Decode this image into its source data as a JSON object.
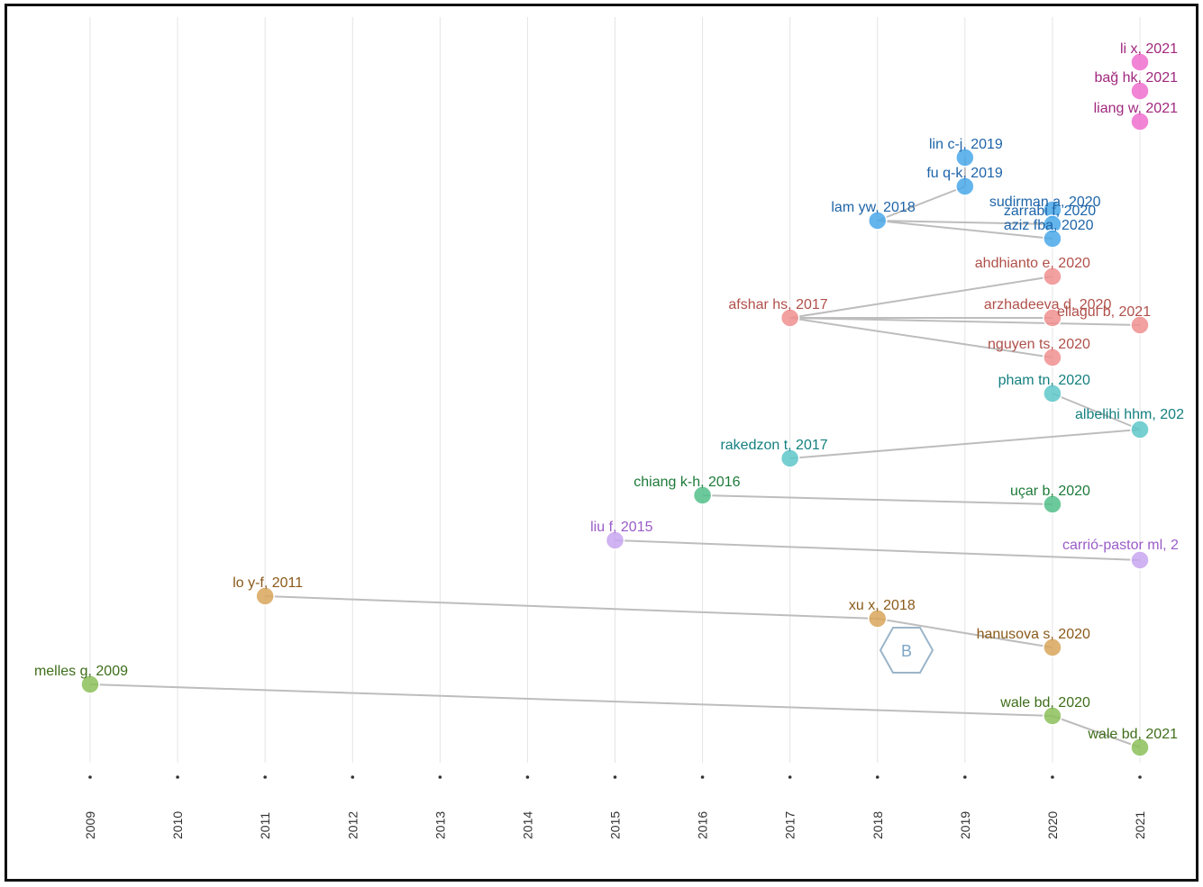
{
  "chart_data": {
    "type": "scatter",
    "title": "",
    "xlabel": "",
    "ylabel": "",
    "x_axis": {
      "ticks": [
        "2009",
        "2010",
        "2011",
        "2012",
        "2013",
        "2014",
        "2015",
        "2016",
        "2017",
        "2018",
        "2019",
        "2020",
        "2021"
      ],
      "range": [
        2009,
        2021
      ],
      "grid": true
    },
    "clusters": [
      {
        "color": "#f06fcf",
        "label_color": "#a0287e",
        "nodes": [
          {
            "id": "li-2021",
            "label": "li x, 2021",
            "year": 2021
          },
          {
            "id": "bag-2021",
            "label": "bağ hk, 2021",
            "year": 2021
          },
          {
            "id": "liang-2021",
            "label": "liang w, 2021",
            "year": 2021
          }
        ]
      },
      {
        "color": "#4aa8ea",
        "label_color": "#1e64a8",
        "nodes": [
          {
            "id": "lin-2019",
            "label": "lin c-j, 2019",
            "year": 2019
          },
          {
            "id": "fu-2019",
            "label": "fu q-k, 2019",
            "year": 2019
          },
          {
            "id": "lam-2018",
            "label": "lam yw, 2018",
            "year": 2018
          },
          {
            "id": "sudirman-2020",
            "label": "sudirman a, 2020",
            "year": 2020
          },
          {
            "id": "zarrabi-2020",
            "label": "zarrabi f, 2020",
            "year": 2020
          },
          {
            "id": "aziz-2020",
            "label": "aziz fba, 2020",
            "year": 2020
          }
        ]
      },
      {
        "color": "#f08f8f",
        "label_color": "#b0504a",
        "nodes": [
          {
            "id": "afshar-2017",
            "label": "afshar hs, 2017",
            "year": 2017
          },
          {
            "id": "ahdhianto-2020",
            "label": "ahdhianto e, 2020",
            "year": 2020
          },
          {
            "id": "arzhadeeva-2020",
            "label": "arzhadeeva d, 2020",
            "year": 2020
          },
          {
            "id": "elaggui-2021",
            "label": "ellagui b, 2021",
            "year": 2021
          },
          {
            "id": "nguyen-2020",
            "label": "nguyen ts, 2020",
            "year": 2020
          }
        ]
      },
      {
        "color": "#5ec7c9",
        "label_color": "#15807f",
        "nodes": [
          {
            "id": "pham-2020",
            "label": "pham tn, 2020",
            "year": 2020
          },
          {
            "id": "albelihi-2021",
            "label": "albelihi hhm, 202",
            "year": 2021
          },
          {
            "id": "rakedzon-2017",
            "label": "rakedzon t, 2017",
            "year": 2017
          }
        ]
      },
      {
        "color": "#52c08a",
        "label_color": "#1e7a3a",
        "nodes": [
          {
            "id": "chiang-2016",
            "label": "chiang k-h, 2016",
            "year": 2016
          },
          {
            "id": "ucar-2020",
            "label": "uçar b, 2020",
            "year": 2020
          }
        ]
      },
      {
        "color": "#c8a6f0",
        "label_color": "#9a5cc8",
        "nodes": [
          {
            "id": "liu-2015",
            "label": "liu f, 2015",
            "year": 2015
          },
          {
            "id": "carrio-2021",
            "label": "carrió-pastor ml, 2",
            "year": 2021
          }
        ]
      },
      {
        "color": "#d8a65a",
        "label_color": "#8a5a1a",
        "nodes": [
          {
            "id": "lo-2011",
            "label": "lo y-f, 2011",
            "year": 2011
          },
          {
            "id": "xu-2018",
            "label": "xu x, 2018",
            "year": 2018
          },
          {
            "id": "hanusova-2020",
            "label": "hanusova s, 2020",
            "year": 2020
          }
        ]
      },
      {
        "color": "#8cc05a",
        "label_color": "#3e6e1a",
        "nodes": [
          {
            "id": "melles-2009",
            "label": "melles g, 2009",
            "year": 2009
          },
          {
            "id": "wale-2020",
            "label": "wale bd, 2020",
            "year": 2020
          },
          {
            "id": "wale-2021",
            "label": "wale bd, 2021",
            "year": 2021
          }
        ]
      }
    ],
    "links": [
      [
        "lin-2019",
        "fu-2019"
      ],
      [
        "fu-2019",
        "lam-2018"
      ],
      [
        "lam-2018",
        "zarrabi-2020"
      ],
      [
        "lam-2018",
        "aziz-2020"
      ],
      [
        "afshar-2017",
        "ahdhianto-2020"
      ],
      [
        "afshar-2017",
        "arzhadeeva-2020"
      ],
      [
        "afshar-2017",
        "elaggui-2021"
      ],
      [
        "afshar-2017",
        "nguyen-2020"
      ],
      [
        "pham-2020",
        "albelihi-2021"
      ],
      [
        "rakedzon-2017",
        "albelihi-2021"
      ],
      [
        "chiang-2016",
        "ucar-2020"
      ],
      [
        "liu-2015",
        "carrio-2021"
      ],
      [
        "lo-2011",
        "xu-2018"
      ],
      [
        "xu-2018",
        "hanusova-2020"
      ],
      [
        "melles-2009",
        "wale-2020"
      ],
      [
        "wale-2020",
        "wale-2021"
      ]
    ]
  },
  "watermark": {
    "icon": "hexagon-logo-icon",
    "text": "B"
  }
}
